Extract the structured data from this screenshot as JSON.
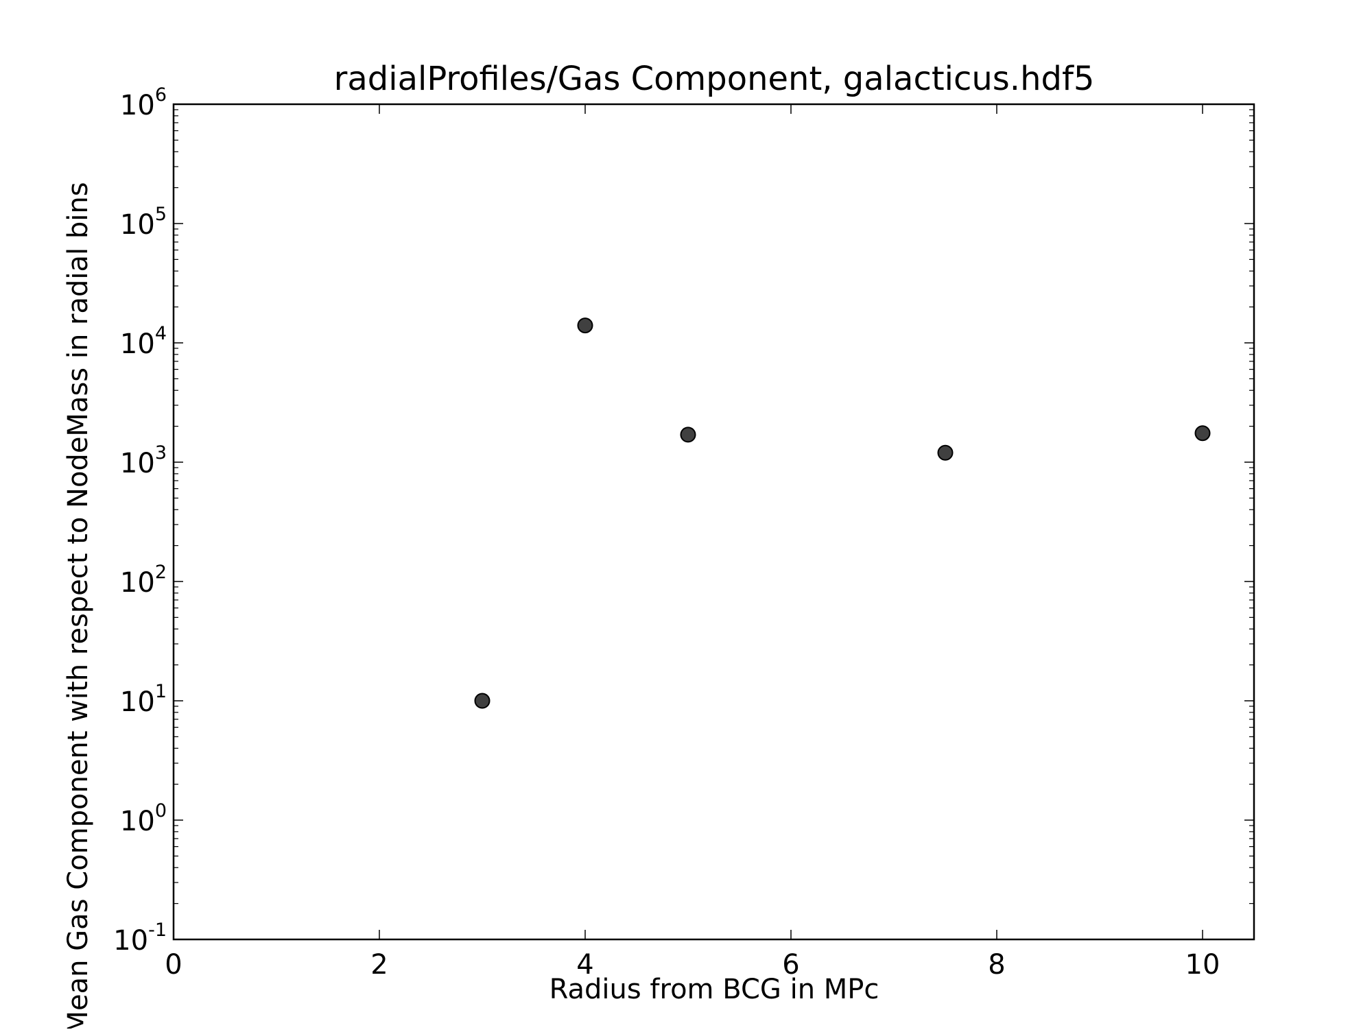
{
  "chart_data": {
    "type": "scatter",
    "title": "radialProfiles/Gas Component, galacticus.hdf5",
    "xlabel": "Radius from BCG in MPc",
    "ylabel": "Mean Gas Component with respect to NodeMass in radial bins",
    "x_scale": "linear",
    "y_scale": "log",
    "xlim": [
      0,
      10.5
    ],
    "ylim": [
      0.1,
      1000000
    ],
    "grid": false,
    "x_ticks": [
      {
        "value": 0,
        "label": "0"
      },
      {
        "value": 2,
        "label": "2"
      },
      {
        "value": 4,
        "label": "4"
      },
      {
        "value": 6,
        "label": "6"
      },
      {
        "value": 8,
        "label": "8"
      },
      {
        "value": 10,
        "label": "10"
      }
    ],
    "y_ticks": [
      {
        "value": 0.1,
        "base": "10",
        "exp": "-1"
      },
      {
        "value": 1,
        "base": "10",
        "exp": "0"
      },
      {
        "value": 10,
        "base": "10",
        "exp": "1"
      },
      {
        "value": 100,
        "base": "10",
        "exp": "2"
      },
      {
        "value": 1000,
        "base": "10",
        "exp": "3"
      },
      {
        "value": 10000,
        "base": "10",
        "exp": "4"
      },
      {
        "value": 100000,
        "base": "10",
        "exp": "5"
      },
      {
        "value": 1000000,
        "base": "10",
        "exp": "6"
      }
    ],
    "points": [
      {
        "x": 3,
        "y": 10
      },
      {
        "x": 4,
        "y": 14000
      },
      {
        "x": 5,
        "y": 1700
      },
      {
        "x": 7.5,
        "y": 1200
      },
      {
        "x": 10,
        "y": 1750
      }
    ],
    "marker_color": "#404040",
    "marker_edge_color": "#000000"
  }
}
